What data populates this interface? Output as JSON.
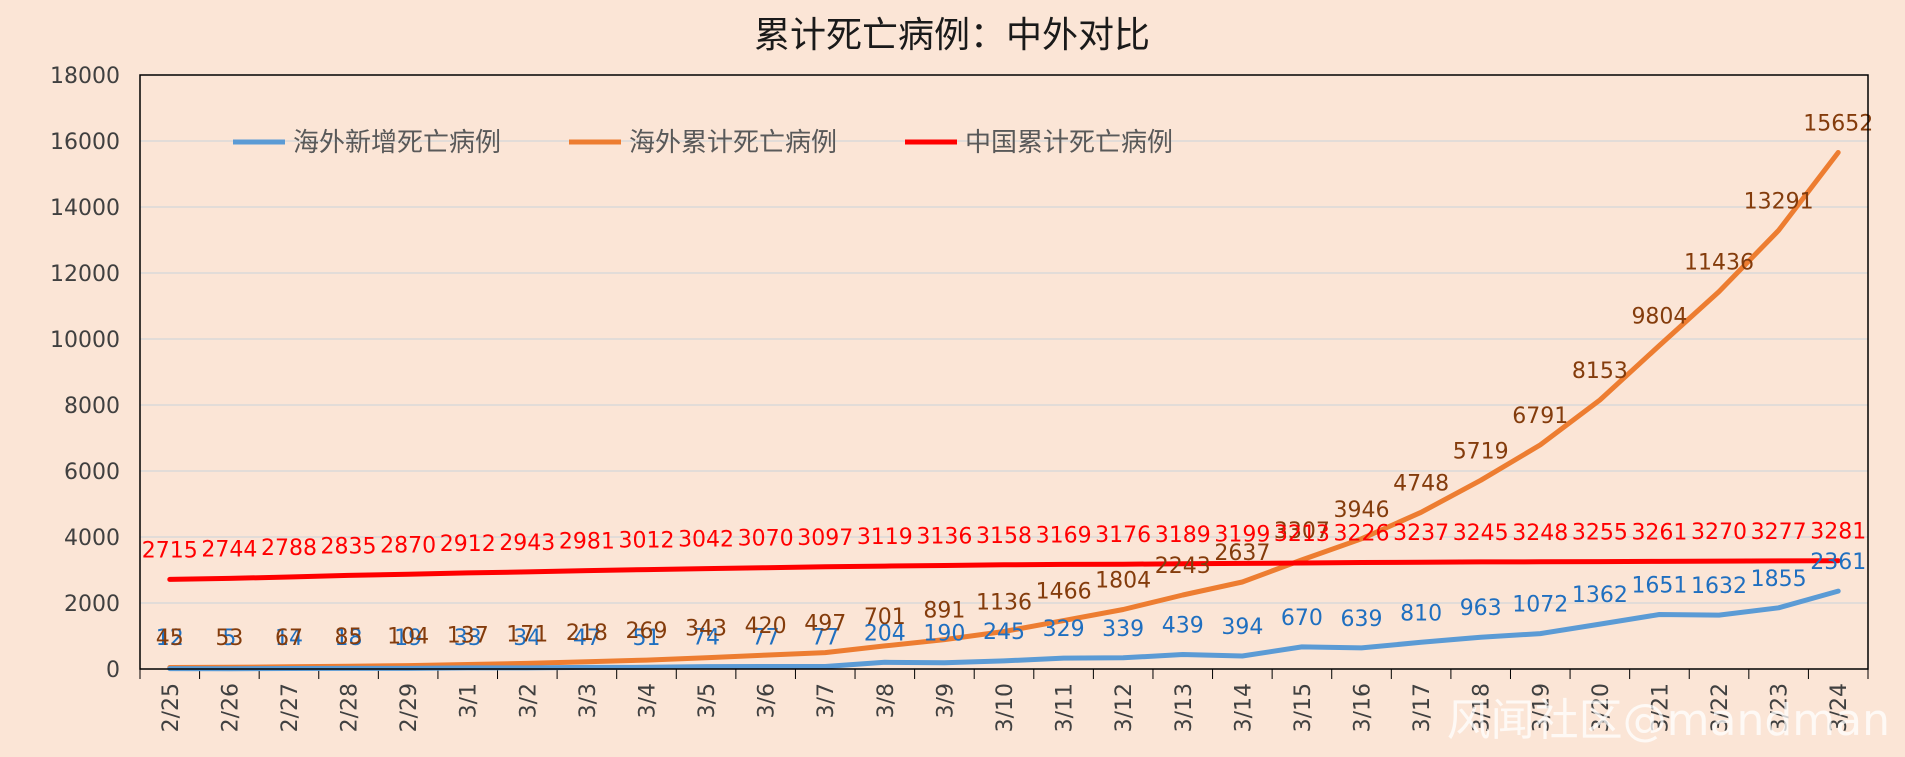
{
  "chart_data": {
    "type": "line",
    "title": "累计死亡病例：中外对比",
    "categories": [
      "2/25",
      "2/26",
      "2/27",
      "2/28",
      "2/29",
      "3/1",
      "3/2",
      "3/3",
      "3/4",
      "3/5",
      "3/6",
      "3/7",
      "3/8",
      "3/9",
      "3/10",
      "3/11",
      "3/12",
      "3/13",
      "3/14",
      "3/15",
      "3/16",
      "3/17",
      "3/18",
      "3/19",
      "3/20",
      "3/21",
      "3/22",
      "3/23",
      "3/24"
    ],
    "ylim": [
      0,
      18000
    ],
    "yticks": [
      "0",
      "2000",
      "4000",
      "6000",
      "8000",
      "10000",
      "12000",
      "14000",
      "16000",
      "18000"
    ],
    "grid": true,
    "legend_position": "top",
    "series": [
      {
        "name": "海外新增死亡病例",
        "color": "#5b9bd5",
        "values": [
          12,
          5,
          14,
          18,
          19,
          33,
          34,
          47,
          51,
          74,
          77,
          77,
          204,
          190,
          245,
          329,
          339,
          439,
          394,
          670,
          639,
          810,
          963,
          1072,
          1362,
          1651,
          1632,
          1855,
          2361
        ]
      },
      {
        "name": "海外累计死亡病例",
        "color": "#ed7d31",
        "values": [
          45,
          53,
          67,
          85,
          104,
          137,
          171,
          218,
          269,
          343,
          420,
          497,
          701,
          891,
          1136,
          1466,
          1804,
          2243,
          2637,
          3307,
          3946,
          4748,
          5719,
          6791,
          8153,
          9804,
          11436,
          13291,
          15652
        ]
      },
      {
        "name": "中国累计死亡病例",
        "color": "#ff0000",
        "values": [
          2715,
          2744,
          2788,
          2835,
          2870,
          2912,
          2943,
          2981,
          3012,
          3042,
          3070,
          3097,
          3119,
          3136,
          3158,
          3169,
          3176,
          3189,
          3199,
          3213,
          3226,
          3237,
          3245,
          3248,
          3255,
          3261,
          3270,
          3277,
          3281
        ]
      }
    ]
  },
  "watermark": "风闻社区@mandman"
}
